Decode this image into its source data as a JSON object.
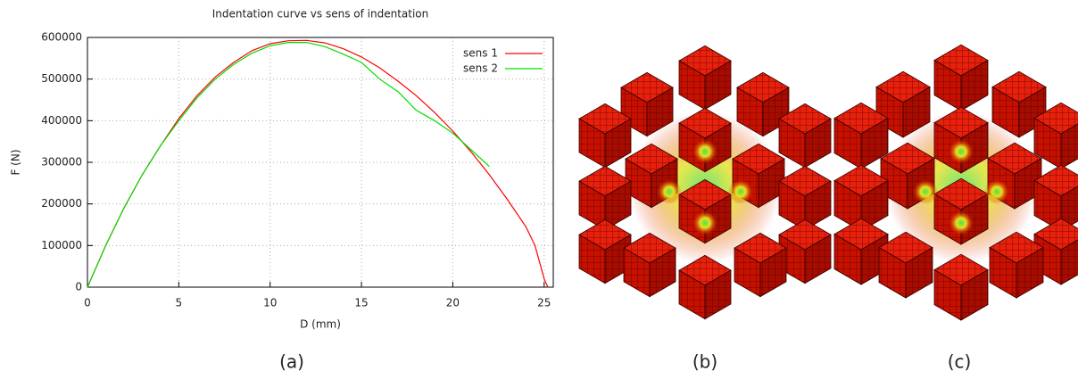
{
  "chart_data": {
    "type": "line",
    "title": "Indentation curve vs sens of indentation",
    "xlabel": "D (mm)",
    "ylabel": "F (N)",
    "xlim": [
      0,
      25.5
    ],
    "ylim": [
      0,
      600000
    ],
    "xticks": [
      0,
      5,
      10,
      15,
      20,
      25
    ],
    "yticks": [
      0,
      100000,
      200000,
      300000,
      400000,
      500000,
      600000
    ],
    "grid": true,
    "legend": "top-right",
    "series": [
      {
        "name": "sens 1",
        "color": "#ff0000",
        "x": [
          0,
          1,
          2,
          3,
          4,
          5,
          6,
          7,
          8,
          9,
          10,
          11,
          12,
          13,
          14,
          15,
          16,
          17,
          18,
          19,
          20,
          21,
          22,
          23,
          24,
          24.5,
          25,
          25.2
        ],
        "values": [
          0,
          100000,
          190000,
          270000,
          340000,
          405000,
          460000,
          505000,
          540000,
          568000,
          585000,
          592000,
          593000,
          587000,
          573000,
          553000,
          527000,
          495000,
          460000,
          420000,
          375000,
          325000,
          270000,
          210000,
          145000,
          100000,
          20000,
          0
        ]
      },
      {
        "name": "sens 2",
        "color": "#00dd00",
        "x": [
          0,
          1,
          2,
          3,
          4,
          5,
          6,
          7,
          8,
          9,
          10,
          11,
          12,
          13,
          14,
          15,
          16,
          17,
          18,
          19,
          20,
          21,
          22
        ],
        "values": [
          0,
          100000,
          190000,
          270000,
          340000,
          400000,
          455000,
          500000,
          535000,
          562000,
          580000,
          588000,
          588000,
          578000,
          560000,
          540000,
          500000,
          470000,
          425000,
          400000,
          370000,
          330000,
          290000
        ]
      }
    ]
  },
  "captions": [
    "(a)",
    "(b)",
    "(c)"
  ]
}
